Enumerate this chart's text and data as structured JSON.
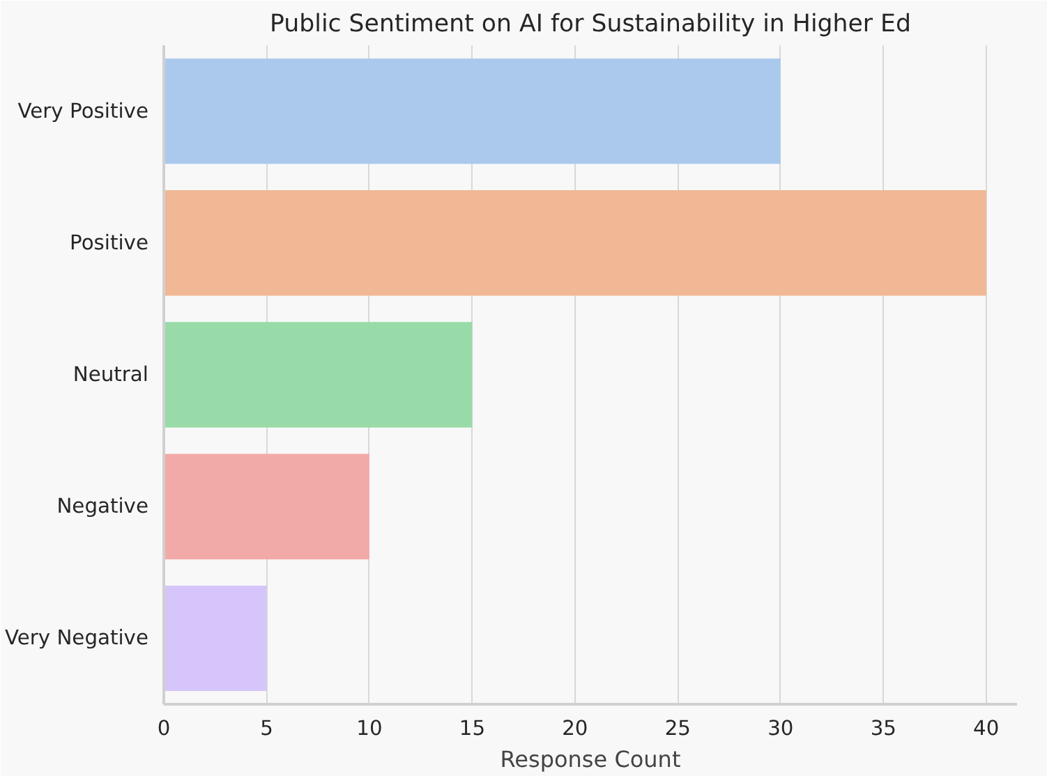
{
  "chart_data": {
    "type": "bar",
    "orientation": "horizontal",
    "title": "Public Sentiment on AI for Sustainability in Higher Ed",
    "xlabel": "Response Count",
    "categories": [
      "Very Positive",
      "Positive",
      "Neutral",
      "Negative",
      "Very Negative"
    ],
    "values": [
      30,
      40,
      15,
      10,
      5
    ],
    "colors": [
      "#abc9ed",
      "#f0b894",
      "#98dba8",
      "#f2aaa9",
      "#d6c5fb"
    ],
    "xlim": [
      0,
      41.5
    ],
    "xticks": [
      0,
      5,
      10,
      15,
      20,
      25,
      30,
      35,
      40
    ],
    "grid": "x"
  }
}
